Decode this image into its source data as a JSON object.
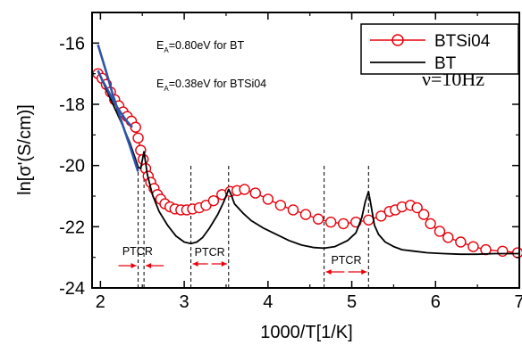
{
  "chart_data": {
    "type": "line",
    "xlabel": "1000/T[1/K]",
    "ylabel": "ln[σ'(S/cm)]",
    "xlim": [
      1.9,
      7.0
    ],
    "ylim": [
      -24,
      -15
    ],
    "xticks": [
      2,
      3,
      4,
      5,
      6,
      7
    ],
    "yticks": [
      -16,
      -18,
      -20,
      -22,
      -24
    ],
    "grid": false,
    "legend_position": "top-right",
    "annotations": {
      "ea_bt_main": "E",
      "ea_bt_sub": "A",
      "ea_bt_rest": "=0.80eV for BT",
      "ea_btsi_main": "E",
      "ea_btsi_sub": "A",
      "ea_btsi_rest": "=0.38eV for BTSi04",
      "frequency": "ν=10Hz",
      "ptcr_labels": [
        "PTCR",
        "PTCR",
        "PTCR"
      ]
    },
    "ptcr_regions": [
      {
        "from": 2.45,
        "to": 2.52
      },
      {
        "from": 3.08,
        "to": 3.53
      },
      {
        "from": 4.67,
        "to": 5.2
      }
    ],
    "series": [
      {
        "name": "BTSi04",
        "color": "#e8000b",
        "marker": "open-circle",
        "x": [
          1.97,
          2.02,
          2.07,
          2.12,
          2.17,
          2.22,
          2.27,
          2.32,
          2.37,
          2.42,
          2.45,
          2.48,
          2.51,
          2.54,
          2.57,
          2.6,
          2.64,
          2.68,
          2.72,
          2.77,
          2.83,
          2.89,
          2.96,
          3.03,
          3.1,
          3.18,
          3.26,
          3.35,
          3.45,
          3.55,
          3.63,
          3.72,
          3.85,
          4.0,
          4.15,
          4.3,
          4.45,
          4.6,
          4.75,
          4.9,
          5.05,
          5.2,
          5.35,
          5.45,
          5.52,
          5.6,
          5.7,
          5.78,
          5.86,
          5.94,
          6.05,
          6.15,
          6.3,
          6.45,
          6.6,
          6.8,
          6.98
        ],
        "y": [
          -17.0,
          -17.15,
          -17.35,
          -17.6,
          -17.85,
          -18.05,
          -18.25,
          -18.4,
          -18.55,
          -18.75,
          -19.1,
          -19.5,
          -19.8,
          -20.1,
          -20.35,
          -20.55,
          -20.75,
          -20.95,
          -21.1,
          -21.25,
          -21.35,
          -21.42,
          -21.45,
          -21.45,
          -21.42,
          -21.38,
          -21.3,
          -21.15,
          -20.95,
          -20.85,
          -20.82,
          -20.78,
          -20.9,
          -21.1,
          -21.3,
          -21.45,
          -21.6,
          -21.75,
          -21.85,
          -21.9,
          -21.85,
          -21.78,
          -21.65,
          -21.5,
          -21.45,
          -21.35,
          -21.3,
          -21.38,
          -21.6,
          -21.9,
          -22.15,
          -22.35,
          -22.5,
          -22.65,
          -22.75,
          -22.8,
          -22.85
        ]
      },
      {
        "name": "BT",
        "color": "#000000",
        "marker": "none",
        "x": [
          1.97,
          2.05,
          2.15,
          2.25,
          2.35,
          2.42,
          2.45,
          2.48,
          2.52,
          2.56,
          2.62,
          2.7,
          2.8,
          2.9,
          3.0,
          3.08,
          3.15,
          3.22,
          3.3,
          3.4,
          3.47,
          3.53,
          3.56,
          3.6,
          3.7,
          3.8,
          3.95,
          4.1,
          4.25,
          4.4,
          4.55,
          4.67,
          4.8,
          4.95,
          5.05,
          5.12,
          5.16,
          5.2,
          5.23,
          5.27,
          5.32,
          5.4,
          5.5,
          5.6,
          5.75,
          5.9,
          6.1,
          6.3,
          6.5,
          6.7,
          6.9,
          7.0
        ],
        "y": [
          -16.9,
          -17.4,
          -18.0,
          -18.6,
          -19.25,
          -19.8,
          -20.05,
          -20.1,
          -19.55,
          -20.3,
          -20.95,
          -21.5,
          -21.95,
          -22.3,
          -22.5,
          -22.55,
          -22.5,
          -22.35,
          -22.05,
          -21.6,
          -21.2,
          -20.78,
          -20.95,
          -21.25,
          -21.55,
          -21.8,
          -22.05,
          -22.25,
          -22.45,
          -22.6,
          -22.68,
          -22.7,
          -22.65,
          -22.45,
          -22.2,
          -21.7,
          -21.2,
          -20.85,
          -21.3,
          -21.95,
          -22.25,
          -22.5,
          -22.65,
          -22.75,
          -22.8,
          -22.85,
          -22.88,
          -22.9,
          -22.9,
          -22.88,
          -22.88,
          -22.88
        ]
      },
      {
        "name": "",
        "color": "#2e54a8",
        "marker": "none",
        "x": [
          1.97,
          2.07,
          2.15,
          2.25,
          2.35,
          2.42,
          2.45
        ],
        "y": [
          -16.05,
          -16.95,
          -17.7,
          -18.55,
          -19.35,
          -19.95,
          -20.2
        ]
      },
      {
        "name": "",
        "color": "#2e54a8",
        "marker": "none",
        "x": [
          1.97,
          2.02,
          2.1,
          2.2,
          2.3,
          2.38
        ],
        "y": [
          -16.9,
          -17.2,
          -17.6,
          -18.1,
          -18.5,
          -18.75
        ]
      }
    ]
  },
  "legend": {
    "items": [
      {
        "label": "BTSi04"
      },
      {
        "label": "BT"
      }
    ]
  }
}
